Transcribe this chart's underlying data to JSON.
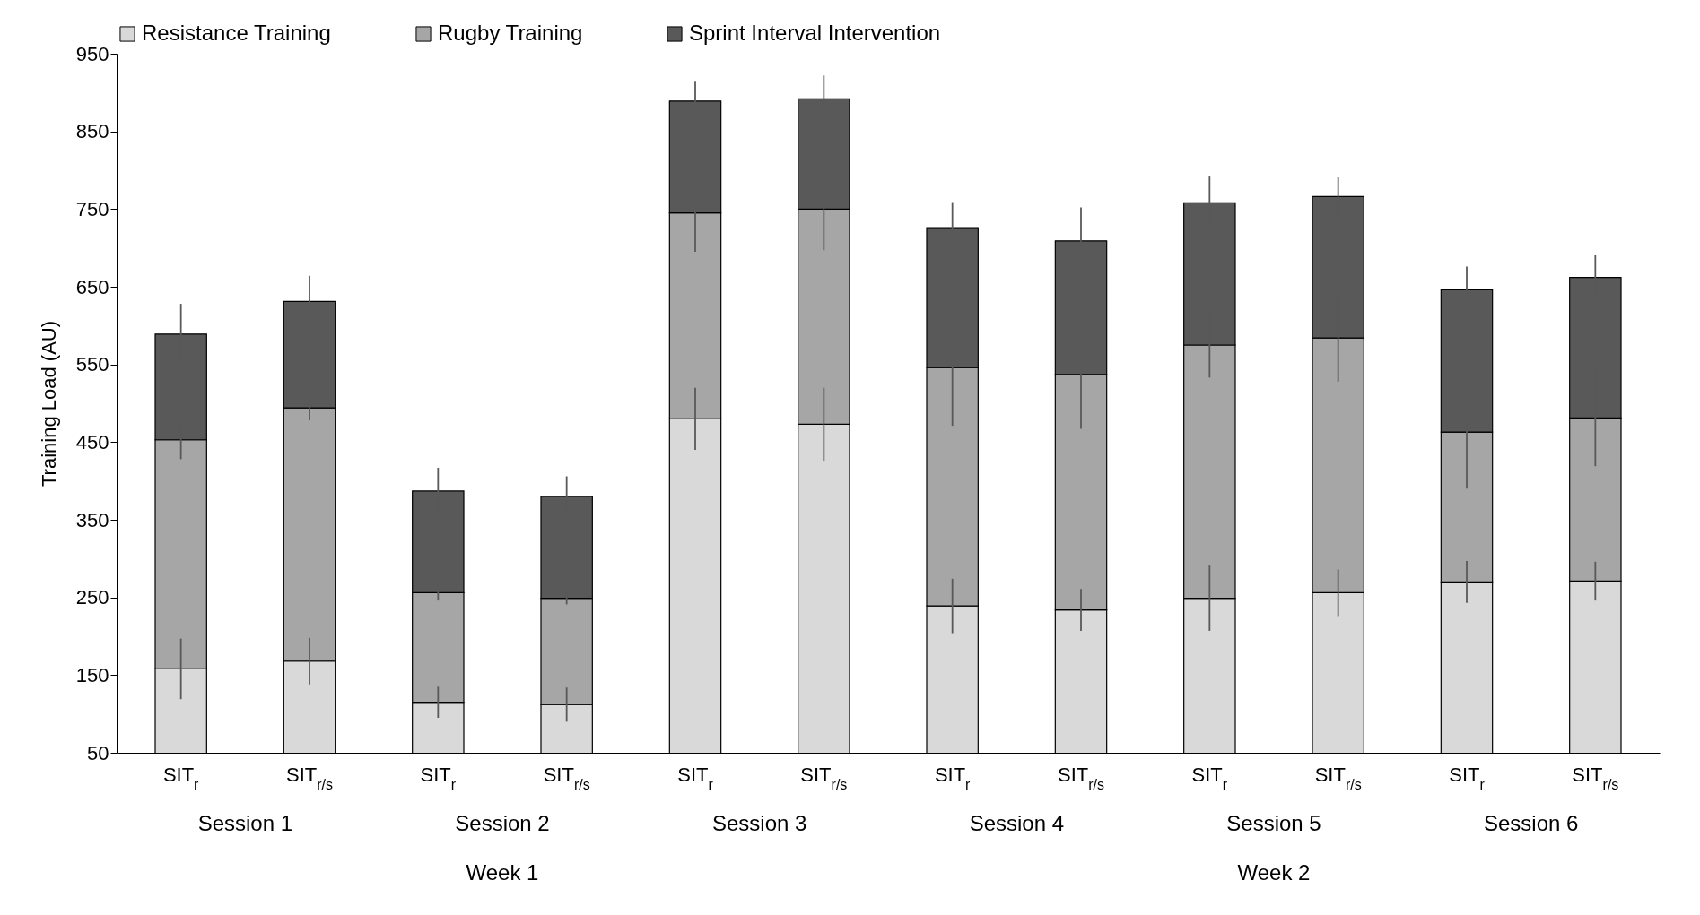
{
  "chart_data": {
    "type": "bar",
    "stacked": true,
    "ylabel": "Training Load (AU)",
    "categories": [
      "SIT$_{r}$",
      "SIT$_{r/s}$",
      "SIT$_{r}$",
      "SIT$_{r/s}$",
      "SIT$_{r}$",
      "SIT$_{r/s}$",
      "SIT$_{r}$",
      "SIT$_{r/s}$",
      "SIT$_{r}$",
      "SIT$_{r/s}$",
      "SIT$_{r}$",
      "SIT$_{r/s}$"
    ],
    "series": [
      {
        "name": "Resistance Training",
        "color": "#d9d9d9",
        "values": [
          158,
          168,
          115,
          112,
          480,
          473,
          239,
          234,
          249,
          256,
          270,
          271
        ],
        "errors": [
          39,
          30,
          20,
          22,
          40,
          47,
          35,
          27,
          42,
          30,
          27,
          25
        ]
      },
      {
        "name": "Rugby Training",
        "color": "#a6a6a6",
        "values": [
          295,
          326,
          141,
          137,
          265,
          277,
          307,
          303,
          326,
          328,
          193,
          210
        ],
        "errors": [
          25,
          16,
          10,
          8,
          50,
          53,
          75,
          70,
          42,
          56,
          73,
          62
        ]
      },
      {
        "name": "Sprint Interval Intervention",
        "color": "#595959",
        "values": [
          136,
          137,
          131,
          131,
          144,
          142,
          180,
          172,
          183,
          182,
          183,
          181
        ],
        "errors": [
          39,
          33,
          30,
          26,
          26,
          30,
          33,
          43,
          35,
          25,
          30,
          29
        ]
      }
    ],
    "ylim": [
      50,
      950
    ],
    "yticks": [
      50,
      150,
      250,
      350,
      450,
      550,
      650,
      750,
      850,
      950
    ],
    "legend": "top",
    "grid": false,
    "annotations": [
      "Session 1",
      "Session 2",
      "Session 3",
      "Session 4",
      "Session 5",
      "Session 6",
      "Week 1",
      "Week 2"
    ]
  }
}
